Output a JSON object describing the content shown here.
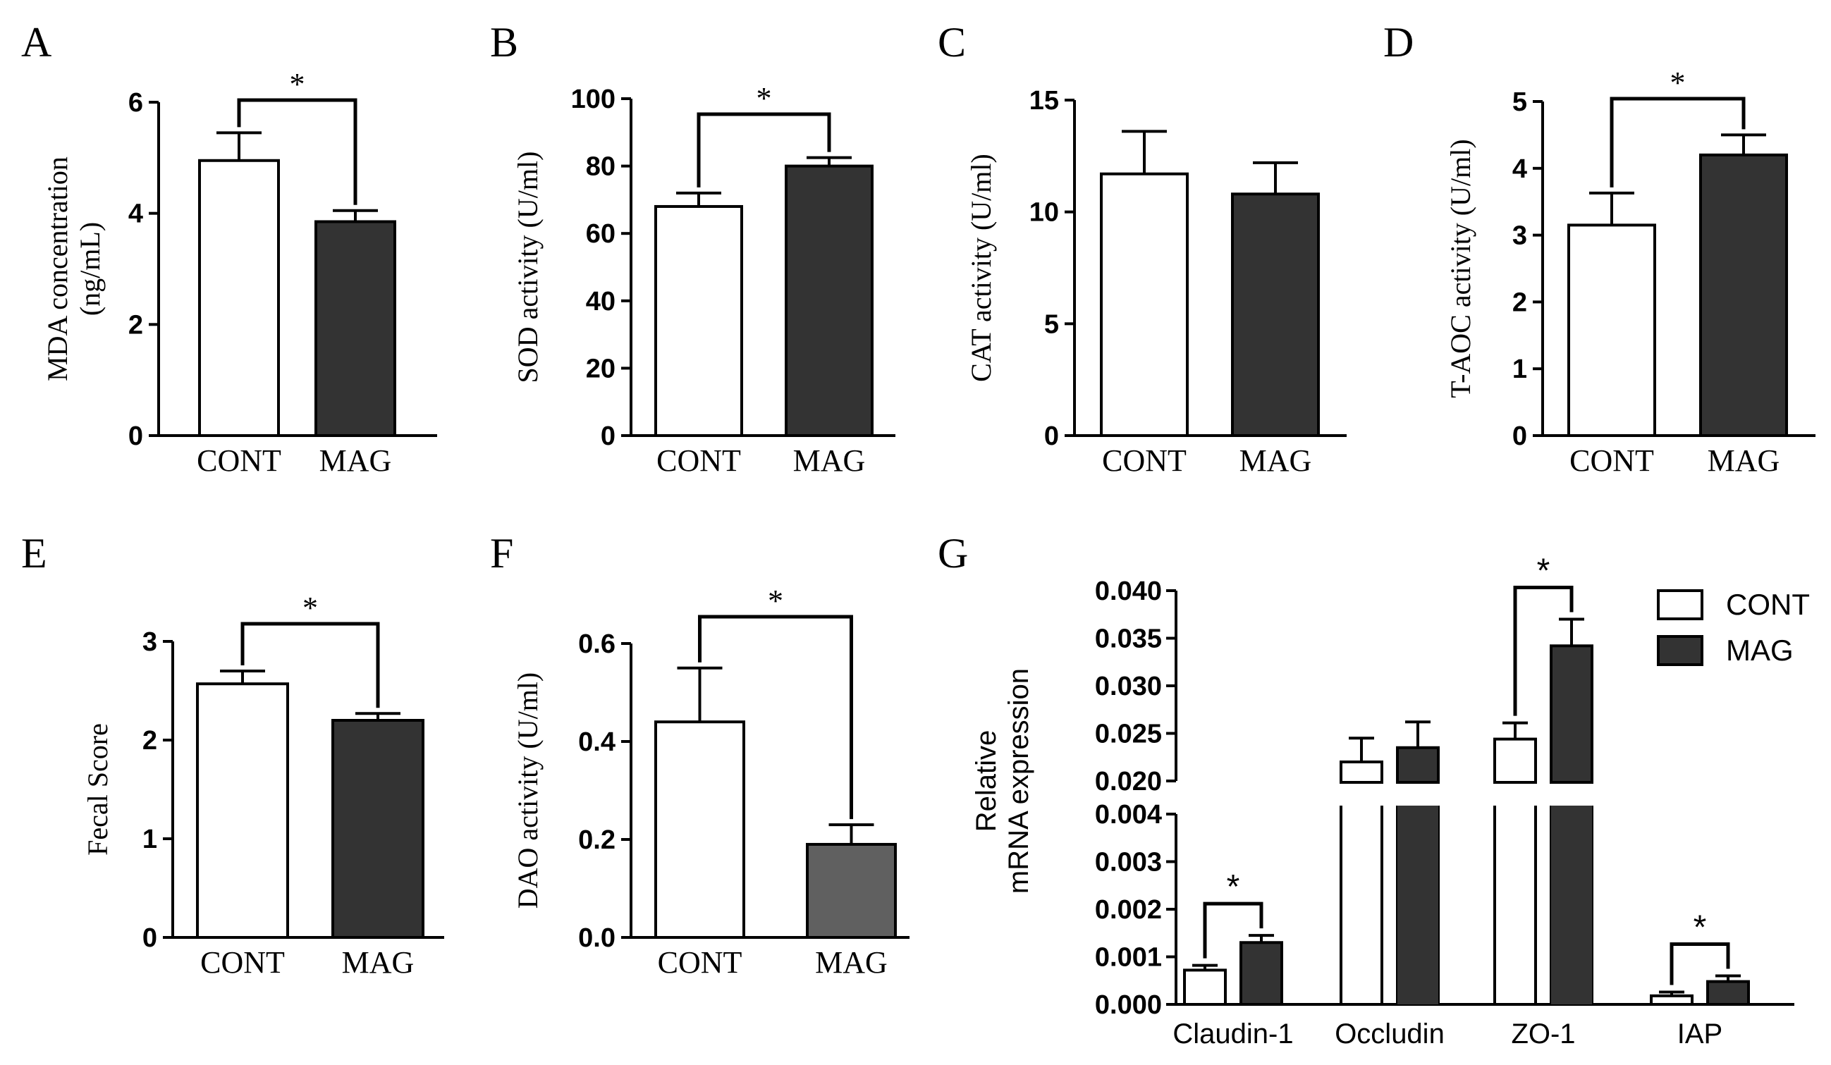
{
  "figure": {
    "colors": {
      "cont_fill": "#ffffff",
      "mag_fill": "#333333",
      "mag_fill_F": "#606060",
      "line": "#000000"
    },
    "panels": [
      {
        "letter": "A",
        "title": "",
        "ylabel_lines": [
          "MDA concentration",
          "(ng/mL)"
        ],
        "ylim": [
          0,
          6
        ],
        "yticks": [
          "0",
          "2",
          "4",
          "6"
        ],
        "categories": [
          "CONT",
          "MAG"
        ],
        "values": [
          4.95,
          3.85
        ],
        "errors": [
          0.5,
          0.2
        ],
        "sig": "*"
      },
      {
        "letter": "B",
        "title": "",
        "ylabel_lines": [
          "SOD activity  (U/ml)"
        ],
        "ylim": [
          0,
          100
        ],
        "yticks": [
          "0",
          "20",
          "40",
          "60",
          "80",
          "100"
        ],
        "categories": [
          "CONT",
          "MAG"
        ],
        "values": [
          68,
          80
        ],
        "errors": [
          4,
          2.5
        ],
        "sig": "*"
      },
      {
        "letter": "C",
        "title": "",
        "ylabel_lines": [
          "CAT activity  (U/ml)"
        ],
        "ylim": [
          0,
          15
        ],
        "yticks": [
          "0",
          "5",
          "10",
          "15"
        ],
        "categories": [
          "CONT",
          "MAG"
        ],
        "values": [
          11.7,
          10.8
        ],
        "errors": [
          1.9,
          1.4
        ],
        "sig": ""
      },
      {
        "letter": "D",
        "title": "",
        "ylabel_lines": [
          "T-AOC activity  (U/ml)"
        ],
        "ylim": [
          0,
          5
        ],
        "yticks": [
          "0",
          "1",
          "2",
          "3",
          "4",
          "5"
        ],
        "categories": [
          "CONT",
          "MAG"
        ],
        "values": [
          3.15,
          4.2
        ],
        "errors": [
          0.48,
          0.3
        ],
        "sig": "*"
      },
      {
        "letter": "E",
        "title": "",
        "ylabel_lines": [
          "Fecal Score"
        ],
        "ylim": [
          0,
          3
        ],
        "yticks": [
          "0",
          "1",
          "2",
          "3"
        ],
        "categories": [
          "CONT",
          "MAG"
        ],
        "values": [
          2.57,
          2.2
        ],
        "errors": [
          0.13,
          0.07
        ],
        "sig": "*"
      },
      {
        "letter": "F",
        "title": "",
        "ylabel_lines": [
          "DAO activity  (U/ml)"
        ],
        "ylim": [
          0,
          0.6
        ],
        "yticks": [
          "0.0",
          "0.2",
          "0.4",
          "0.6"
        ],
        "categories": [
          "CONT",
          "MAG"
        ],
        "values": [
          0.44,
          0.19
        ],
        "errors": [
          0.11,
          0.04
        ],
        "sig": "*"
      }
    ],
    "panelG": {
      "letter": "G",
      "ylabel_lines": [
        "Relative",
        "mRNA expression"
      ],
      "lower_ylim": [
        0,
        0.004
      ],
      "upper_ylim": [
        0.02,
        0.04
      ],
      "lower_ticks": [
        "0.000",
        "0.001",
        "0.002",
        "0.003",
        "0.004"
      ],
      "upper_ticks": [
        "0.020",
        "0.025",
        "0.030",
        "0.035",
        "0.040"
      ],
      "categories": [
        "Claudin-1",
        "Occludin",
        "ZO-1",
        "IAP"
      ],
      "legend": [
        "CONT",
        "MAG"
      ],
      "series": [
        {
          "name": "CONT",
          "values": [
            0.00072,
            0.022,
            0.0244,
            0.00018
          ],
          "errors": [
            0.0001,
            0.0025,
            0.0017,
            8e-05
          ]
        },
        {
          "name": "MAG",
          "values": [
            0.0013,
            0.0235,
            0.0342,
            0.00048
          ],
          "errors": [
            0.00015,
            0.0027,
            0.0028,
            0.00012
          ]
        }
      ],
      "sig": [
        "*",
        "",
        "*",
        "*"
      ]
    }
  }
}
